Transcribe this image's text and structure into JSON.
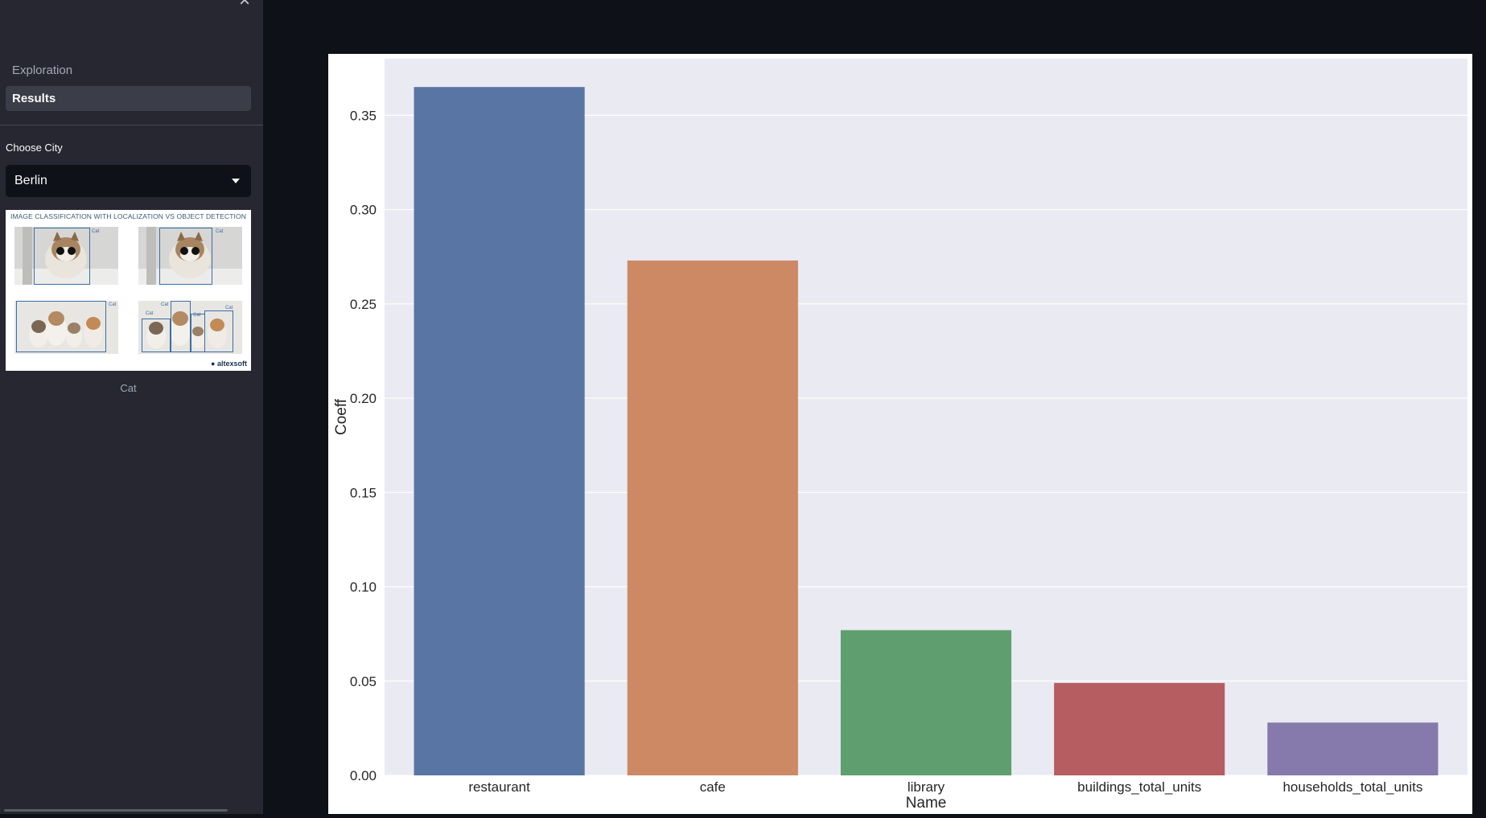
{
  "sidebar": {
    "nav": [
      {
        "label": "Exploration",
        "active": false
      },
      {
        "label": "Results",
        "active": true
      }
    ],
    "city_select": {
      "label": "Choose City",
      "value": "Berlin"
    },
    "image": {
      "title": "IMAGE CLASSIFICATION WITH LOCALIZATION VS OBJECT DETECTION",
      "box_label": "Cat",
      "brand": "altexsoft"
    },
    "caption": "Cat"
  },
  "chart_data": {
    "type": "bar",
    "categories": [
      "restaurant",
      "cafe",
      "library",
      "buildings_total_units",
      "households_total_units"
    ],
    "values": [
      0.365,
      0.273,
      0.077,
      0.049,
      0.028
    ],
    "colors": [
      "#5975a4",
      "#cc8963",
      "#5f9e6e",
      "#b55d60",
      "#857aab"
    ],
    "xlabel": "Name",
    "ylabel": "Coeff",
    "ylim": [
      0,
      0.38
    ],
    "yticks": [
      "0.00",
      "0.05",
      "0.10",
      "0.15",
      "0.20",
      "0.25",
      "0.30",
      "0.35"
    ],
    "grid": true,
    "background": "#eaeaf2"
  }
}
